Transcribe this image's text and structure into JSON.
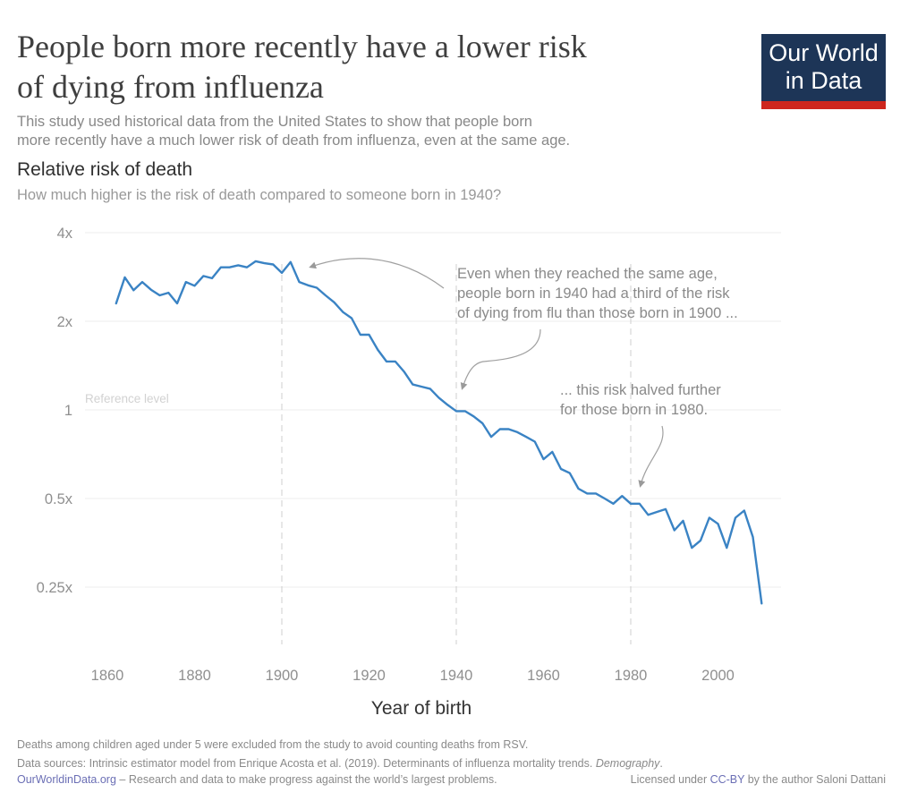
{
  "header": {
    "title_line1": "People born more recently have a lower risk",
    "title_line2": "of dying from influenza",
    "subtitle_line1": "This study used historical data from the United States to show that people born",
    "subtitle_line2": "more recently have a much lower risk of death from influenza, even at the same age.",
    "logo_line1": "Our World",
    "logo_line2": "in Data"
  },
  "colors": {
    "line": "#3a83c4",
    "logo_bg": "#1d3557",
    "logo_accent": "#ce261e"
  },
  "chart_data": {
    "type": "line",
    "title": "Relative risk of death",
    "subtitle": "How much higher is the risk of death compared to someone born in 1940?",
    "xlabel": "Year of birth",
    "ylabel": "",
    "y_scale": "log2",
    "xlim": [
      1855,
      2015
    ],
    "ylim": [
      0.15,
      4
    ],
    "x_ticks": [
      1860,
      1880,
      1900,
      1920,
      1940,
      1960,
      1980,
      2000
    ],
    "y_ticks": [
      {
        "value": 4,
        "label": "4x"
      },
      {
        "value": 2,
        "label": "2x"
      },
      {
        "value": 1,
        "label": "1"
      },
      {
        "value": 0.5,
        "label": "0.5x"
      },
      {
        "value": 0.25,
        "label": "0.25x"
      }
    ],
    "reference_label": "Reference level",
    "marker_years": [
      1900,
      1940,
      1980
    ],
    "series": [
      {
        "x": [
          1862,
          1864,
          1866,
          1868,
          1870,
          1872,
          1874,
          1876,
          1878,
          1880,
          1882,
          1884,
          1886,
          1888,
          1890,
          1892,
          1894,
          1896,
          1898,
          1900,
          1902,
          1904,
          1906,
          1908,
          1910,
          1912,
          1914,
          1916,
          1918,
          1920,
          1922,
          1924,
          1926,
          1928,
          1930,
          1932,
          1934,
          1936,
          1938,
          1940,
          1942,
          1944,
          1946,
          1948,
          1950,
          1952,
          1954,
          1956,
          1958,
          1960,
          1962,
          1964,
          1966,
          1968,
          1970,
          1972,
          1974,
          1976,
          1978,
          1980,
          1982,
          1984,
          1986,
          1988,
          1990,
          1992,
          1994,
          1996,
          1998,
          2000,
          2002,
          2004,
          2006,
          2008,
          2010
        ],
        "y": [
          2.3,
          2.82,
          2.55,
          2.72,
          2.56,
          2.45,
          2.5,
          2.3,
          2.72,
          2.64,
          2.85,
          2.8,
          3.05,
          3.05,
          3.1,
          3.05,
          3.2,
          3.15,
          3.12,
          2.92,
          3.18,
          2.72,
          2.65,
          2.6,
          2.45,
          2.32,
          2.15,
          2.05,
          1.8,
          1.8,
          1.6,
          1.46,
          1.46,
          1.35,
          1.22,
          1.2,
          1.18,
          1.1,
          1.04,
          0.99,
          0.99,
          0.95,
          0.9,
          0.81,
          0.86,
          0.86,
          0.84,
          0.81,
          0.78,
          0.68,
          0.72,
          0.63,
          0.61,
          0.54,
          0.52,
          0.52,
          0.5,
          0.48,
          0.51,
          0.48,
          0.48,
          0.44,
          0.45,
          0.46,
          0.39,
          0.42,
          0.34,
          0.36,
          0.43,
          0.41,
          0.34,
          0.43,
          0.455,
          0.37,
          0.22
        ]
      }
    ],
    "annotations": [
      {
        "lines": [
          "Even when they reached the same age,",
          "people born in 1940 had a third of the risk",
          "of dying from flu than those born in 1900 ..."
        ]
      },
      {
        "lines": [
          "... this risk halved further",
          "for those born in 1980."
        ]
      }
    ]
  },
  "footer": {
    "note": "Deaths among children aged under 5 were excluded from the study to avoid counting deaths from RSV.",
    "sources_prefix": "Data sources: Intrinsic estimator model from Enrique Acosta et al. (2019). Determinants of influenza mortality trends.",
    "sources_journal": "Demography",
    "sources_suffix": ".",
    "site_link": "OurWorldinData.org",
    "site_tagline": " – Research and data to make progress against the world’s largest problems.",
    "license_prefix": "Licensed under ",
    "license_link": "CC-BY",
    "license_suffix": " by the author Saloni Dattani"
  }
}
